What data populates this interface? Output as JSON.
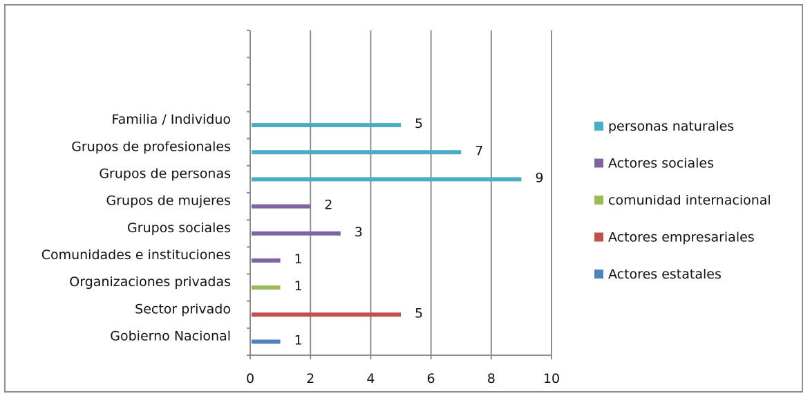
{
  "chart_data": {
    "type": "bar",
    "orientation": "horizontal",
    "categories": [
      "Gobierno Nacional",
      "Sector privado",
      "Organizaciones privadas",
      "Comunidades e instituciones",
      "Grupos sociales",
      "Grupos de mujeres",
      "Grupos de personas",
      "Grupos de profesionales",
      "Familia / Individuo"
    ],
    "series": [
      {
        "name": "personas naturales",
        "color": "#4bacc6",
        "values": [
          null,
          null,
          null,
          null,
          null,
          null,
          9,
          7,
          5
        ]
      },
      {
        "name": "Actores sociales",
        "color": "#8064a2",
        "values": [
          null,
          null,
          null,
          1,
          3,
          2,
          null,
          null,
          null
        ]
      },
      {
        "name": "comunidad internacional",
        "color": "#9bbb59",
        "values": [
          null,
          null,
          1,
          null,
          null,
          null,
          null,
          null,
          null
        ]
      },
      {
        "name": "Actores empresariales",
        "color": "#c0504d",
        "values": [
          null,
          5,
          null,
          null,
          null,
          null,
          null,
          null,
          null
        ]
      },
      {
        "name": "Actores estatales",
        "color": "#4f81bd",
        "values": [
          1,
          null,
          null,
          null,
          null,
          null,
          null,
          null,
          null
        ]
      }
    ],
    "xlim": [
      0,
      10
    ],
    "xticks": [
      "0",
      "2",
      "4",
      "6",
      "8",
      "10"
    ],
    "grid": true,
    "legend_position": "right"
  }
}
